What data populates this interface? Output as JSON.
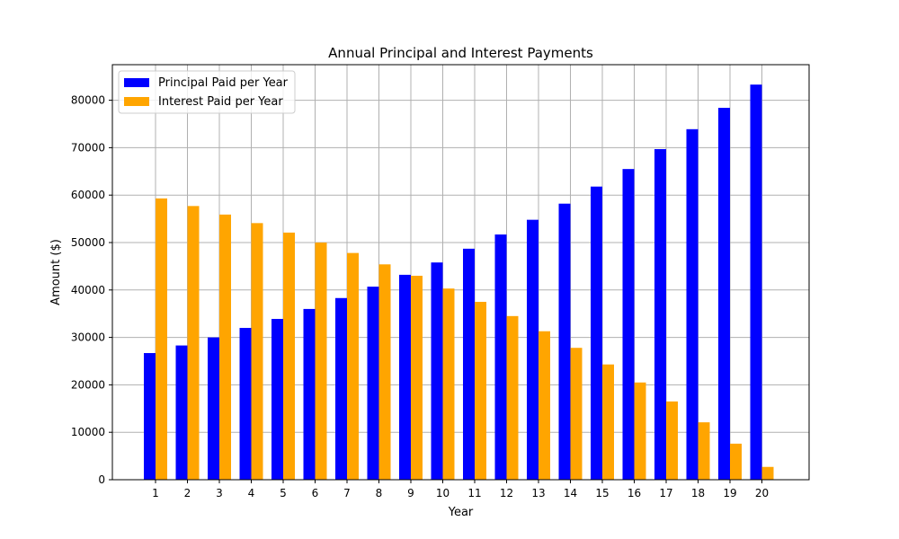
{
  "chart_data": {
    "type": "bar",
    "title": "Annual Principal and Interest Payments",
    "xlabel": "Year",
    "ylabel": "Amount ($)",
    "categories": [
      "1",
      "2",
      "3",
      "4",
      "5",
      "6",
      "7",
      "8",
      "9",
      "10",
      "11",
      "12",
      "13",
      "14",
      "15",
      "16",
      "17",
      "18",
      "19",
      "20"
    ],
    "series": [
      {
        "name": "Principal Paid per Year",
        "color": "#0000ff",
        "values": [
          26700,
          28300,
          30000,
          32000,
          33900,
          36000,
          38300,
          40700,
          43200,
          45800,
          48700,
          51700,
          54800,
          58200,
          61800,
          65500,
          69700,
          73900,
          78400,
          83300
        ]
      },
      {
        "name": "Interest Paid per Year",
        "color": "#ffa500",
        "values": [
          59300,
          57700,
          55900,
          54100,
          52100,
          50000,
          47800,
          45400,
          43000,
          40300,
          37500,
          34500,
          31300,
          27800,
          24300,
          20500,
          16500,
          12100,
          7600,
          2700
        ]
      }
    ],
    "ylim": [
      0,
      87500
    ],
    "yticks": [
      0,
      10000,
      20000,
      30000,
      40000,
      50000,
      60000,
      70000,
      80000
    ],
    "ytick_labels": [
      "0",
      "10000",
      "20000",
      "30000",
      "40000",
      "50000",
      "60000",
      "70000",
      "80000"
    ],
    "grid": true,
    "legend_position": "top-left"
  }
}
